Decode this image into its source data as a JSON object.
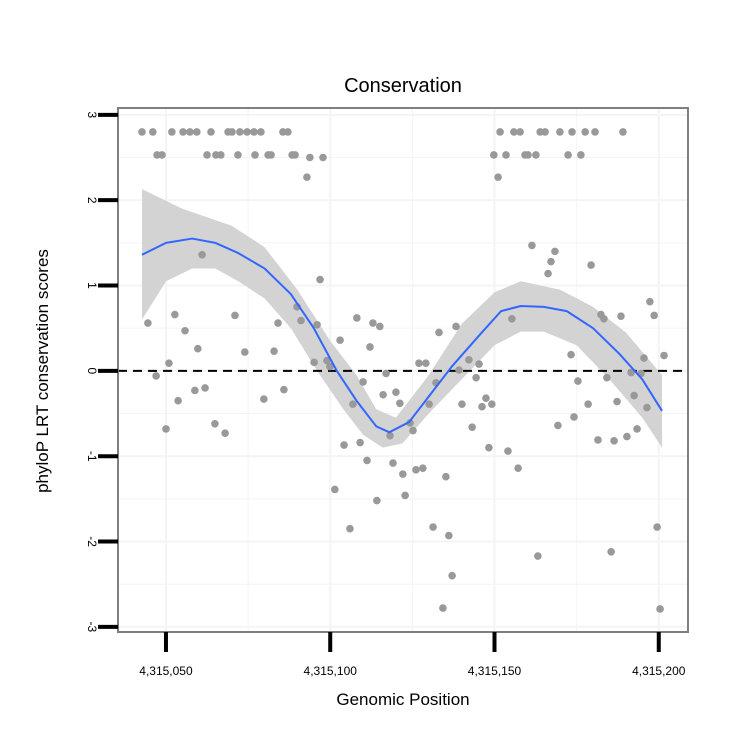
{
  "chart_data": {
    "type": "scatter",
    "title": "Conservation",
    "xlabel": "Genomic Position",
    "ylabel": "phyloP LRT conservation scores",
    "xlim": [
      4315035.4,
      4315208.9
    ],
    "ylim": [
      -3.06,
      3.08
    ],
    "x_offset": 4315000,
    "xticks": [
      4315050,
      4315100,
      4315150,
      4315200
    ],
    "xtick_labels": [
      "4,315,050",
      "4,315,100",
      "4,315,150",
      "4,315,200"
    ],
    "yticks": [
      -3,
      -2,
      -1,
      0,
      1,
      2,
      3
    ],
    "ytick_labels": [
      "-3",
      "-2",
      "-1",
      "0",
      "1",
      "2",
      "3"
    ],
    "grid": true,
    "reference_line": {
      "y": 0,
      "style": "dashed"
    },
    "colors": {
      "points": "#999999",
      "smooth": "#3366ff",
      "ribbon": "#d3d3d3",
      "frame": "#7f7f7f",
      "grid": "#f4f4f4"
    },
    "points_x_minus_offset": [
      42.7,
      46.0,
      51.8,
      55.2,
      57.3,
      59.4,
      63.7,
      68.9,
      70.1,
      72.5,
      74.7,
      76.8,
      78.9,
      85.6,
      87.1,
      151.7,
      155.9,
      157.8,
      163.9,
      165.4,
      169.9,
      173.6,
      177.6,
      180.6,
      189.1,
      47.3,
      48.8,
      62.5,
      65.2,
      66.7,
      71.9,
      77.1,
      81.1,
      82.0,
      88.4,
      89.3,
      149.8,
      153.5,
      159.3,
      160.2,
      162.6,
      172.4,
      176.3,
      92.9,
      93.8,
      97.8,
      151.1,
      44.5,
      52.7,
      55.8,
      61.0,
      59.7,
      71.0,
      50.9,
      47.0,
      74.0,
      82.9,
      84.1,
      96.9,
      89.9,
      91.1,
      96.0,
      95.1,
      99.0,
      103.0,
      108.1,
      113.0,
      115.1,
      112.1,
      117.0,
      53.7,
      50.0,
      58.8,
      61.9,
      64.9,
      68.0,
      79.8,
      85.9,
      99.9,
      106.9,
      110.0,
      116.1,
      120.0,
      121.2,
      118.2,
      104.2,
      109.1,
      111.2,
      101.4,
      114.2,
      106.0,
      119.1,
      122.1,
      122.8,
      124.3,
      125.2,
      130.1,
      132.2,
      140.1,
      143.2,
      144.4,
      145.3,
      147.4,
      146.2,
      149.2,
      148.3,
      154.1,
      157.2,
      126.1,
      128.2,
      135.2,
      131.3,
      136.1,
      137.1,
      134.3,
      163.2,
      175.4,
      178.5,
      174.2,
      169.3,
      181.5,
      186.4,
      190.3,
      193.4,
      196.4,
      192.5,
      187.3,
      184.2,
      191.6,
      194.6,
      185.5,
      199.5,
      200.4,
      161.4,
      168.4,
      167.2,
      166.3,
      179.4,
      155.3,
      133.1,
      138.3,
      182.4,
      183.3,
      188.5,
      197.3,
      198.6,
      201.6,
      195.5,
      173.3,
      127.0,
      129.1,
      142.2,
      139.2
    ],
    "points_y": [
      2.8,
      2.8,
      2.8,
      2.8,
      2.8,
      2.8,
      2.8,
      2.8,
      2.8,
      2.8,
      2.8,
      2.8,
      2.8,
      2.8,
      2.8,
      2.8,
      2.8,
      2.8,
      2.8,
      2.8,
      2.8,
      2.8,
      2.8,
      2.8,
      2.8,
      2.53,
      2.53,
      2.53,
      2.53,
      2.53,
      2.53,
      2.53,
      2.53,
      2.53,
      2.53,
      2.53,
      2.53,
      2.53,
      2.53,
      2.53,
      2.53,
      2.53,
      2.53,
      2.27,
      2.5,
      2.5,
      2.27,
      0.56,
      0.66,
      0.47,
      1.36,
      0.26,
      0.65,
      0.09,
      -0.06,
      0.22,
      0.23,
      0.56,
      1.07,
      0.75,
      0.59,
      0.54,
      0.1,
      0.12,
      0.36,
      0.62,
      0.56,
      0.52,
      0.28,
      -0.03,
      -0.35,
      -0.68,
      -0.23,
      -0.2,
      -0.62,
      -0.73,
      -0.33,
      -0.22,
      0.05,
      -0.39,
      -0.13,
      -0.28,
      -0.25,
      -0.38,
      -0.76,
      -0.87,
      -0.84,
      -1.05,
      -1.39,
      -1.52,
      -1.85,
      -1.08,
      -1.21,
      -1.46,
      -0.61,
      -0.7,
      -0.39,
      -0.14,
      -0.39,
      -0.66,
      -0.08,
      0.08,
      -0.32,
      -0.42,
      -0.39,
      -0.9,
      -0.94,
      -1.14,
      -1.16,
      -1.14,
      -1.24,
      -1.83,
      -1.93,
      -2.4,
      -2.78,
      -2.17,
      -0.12,
      -0.39,
      -0.54,
      -0.64,
      -0.81,
      -0.82,
      -0.77,
      -0.68,
      -0.43,
      -0.29,
      -0.36,
      -0.08,
      -0.02,
      -0.03,
      -2.12,
      -1.83,
      -2.79,
      1.47,
      1.4,
      1.28,
      1.14,
      1.24,
      0.61,
      0.45,
      0.52,
      0.66,
      0.61,
      0.64,
      0.81,
      0.65,
      0.18,
      0.15,
      0.19,
      0.09,
      0.09,
      0.13,
      0.01
    ],
    "smooth": {
      "x": [
        42.7,
        50,
        58,
        65,
        72,
        80,
        88,
        95,
        102,
        108,
        114,
        118,
        124,
        130,
        137,
        145,
        152,
        158,
        165,
        172,
        180,
        188,
        195,
        201
      ],
      "y": [
        1.36,
        1.5,
        1.55,
        1.5,
        1.38,
        1.2,
        0.9,
        0.5,
        0.0,
        -0.35,
        -0.65,
        -0.72,
        -0.6,
        -0.3,
        0.05,
        0.4,
        0.7,
        0.76,
        0.75,
        0.7,
        0.5,
        0.2,
        -0.1,
        -0.47
      ]
    },
    "ribbon_upper": {
      "x": [
        42.7,
        55,
        70,
        80,
        90,
        100,
        108,
        114,
        120,
        130,
        140,
        150,
        158,
        170,
        180,
        190,
        201
      ],
      "y": [
        2.13,
        1.9,
        1.7,
        1.45,
        0.95,
        0.35,
        -0.05,
        -0.45,
        -0.55,
        -0.05,
        0.55,
        0.92,
        1.05,
        0.95,
        0.75,
        0.45,
        -0.05
      ]
    },
    "ribbon_lower": {
      "x": [
        42.7,
        50,
        58,
        65,
        72,
        80,
        88,
        96,
        104,
        110,
        116,
        122,
        130,
        140,
        150,
        158,
        165,
        175,
        185,
        195,
        201
      ],
      "y": [
        0.6,
        1.05,
        1.2,
        1.2,
        1.05,
        0.85,
        0.5,
        0.0,
        -0.45,
        -0.75,
        -0.9,
        -0.85,
        -0.5,
        -0.1,
        0.3,
        0.46,
        0.46,
        0.3,
        -0.1,
        -0.55,
        -0.9
      ]
    }
  }
}
